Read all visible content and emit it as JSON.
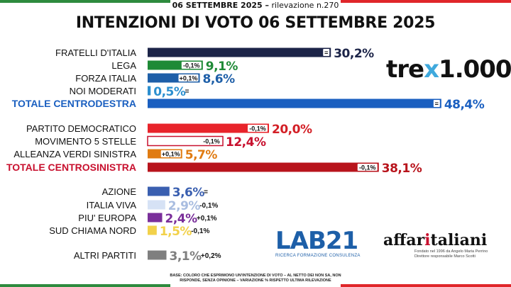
{
  "header": {
    "date_line_bold": "06 SETTEMBRE 2025 –",
    "date_line_rest": " rilevazione n.270",
    "title": "INTENZIONI DI VOTO 06 SETTEMBRE 2025"
  },
  "colors": {
    "flag_green": "#2e8b3e",
    "flag_white": "#ffffff",
    "flag_red": "#e0262a"
  },
  "chart_data": {
    "type": "bar",
    "orientation": "horizontal",
    "title": "INTENZIONI DI VOTO 06 SETTEMBRE 2025",
    "unit": "%",
    "rows": [
      {
        "party": "FRATELLI D'ITALIA",
        "value": 30.2,
        "label": "30,2%",
        "change": "=",
        "color": "#1c2448",
        "change_pos": "inside",
        "label_color": "#1c2448",
        "party_color": "#111111",
        "bold": false
      },
      {
        "party": "LEGA",
        "value": 9.1,
        "label": "9,1%",
        "change": "-0,1%",
        "color": "#1e8a36",
        "change_pos": "inside",
        "label_color": "#1e8a36",
        "party_color": "#111111",
        "bold": false
      },
      {
        "party": "FORZA ITALIA",
        "value": 8.6,
        "label": "8,6%",
        "change": "+0,1%",
        "color": "#1e5fa8",
        "change_pos": "inside",
        "label_color": "#1e5fa8",
        "party_color": "#111111",
        "bold": false
      },
      {
        "party": "NOI MODERATI",
        "value": 0.5,
        "label": "0,5%",
        "change": "=",
        "color": "#2c8fcf",
        "change_pos": "after",
        "label_color": "#2c8fcf",
        "party_color": "#111111",
        "bold": false
      },
      {
        "party": "TOTALE CENTRODESTRA",
        "value": 48.4,
        "label": "48,4%",
        "change": "=",
        "color": "#1a5fc0",
        "change_pos": "inside",
        "label_color": "#1a5fc0",
        "party_color": "#1a5fc0",
        "bold": true
      },
      {
        "party": "PARTITO DEMOCRATICO",
        "value": 20.0,
        "label": "20,0%",
        "change": "-0,1%",
        "color": "#e8242b",
        "change_pos": "inside",
        "label_color": "#d31f26",
        "party_color": "#111111",
        "bold": false
      },
      {
        "party": "MOVIMENTO 5 STELLE",
        "value": 12.4,
        "label": "12,4%",
        "change": "-0,1%",
        "color": "#ffffff",
        "stroke": "#c8102e",
        "change_pos": "inside",
        "label_color": "#c8102e",
        "party_color": "#111111",
        "bold": false
      },
      {
        "party": "ALLEANZA VERDI SINISTRA",
        "value": 5.7,
        "label": "5,7%",
        "change": "+0,1%",
        "color": "#e07b12",
        "change_pos": "inside",
        "label_color": "#e07b12",
        "party_color": "#111111",
        "bold": false
      },
      {
        "party": "TOTALE CENTROSINISTRA",
        "value": 38.1,
        "label": "38,1%",
        "change": "-0,1%",
        "color": "#b8141c",
        "change_pos": "inside",
        "label_color": "#b8141c",
        "party_color": "#c8102e",
        "bold": true
      },
      {
        "party": "AZIONE",
        "value": 3.6,
        "label": "3,6%",
        "change": "=",
        "color": "#3a5fb0",
        "change_pos": "after",
        "label_color": "#3a5fb0",
        "party_color": "#111111",
        "bold": false
      },
      {
        "party": "ITALIA VIVA",
        "value": 2.9,
        "label": "2,9%",
        "change": "-0,1%",
        "color": "#d6e2f5",
        "change_pos": "after",
        "label_color": "#a9bde0",
        "party_color": "#111111",
        "bold": false
      },
      {
        "party": "PIU' EUROPA",
        "value": 2.4,
        "label": "2,4%",
        "change": "+0,1%",
        "color": "#7a2f9a",
        "change_pos": "after",
        "label_color": "#7a2f9a",
        "party_color": "#111111",
        "bold": false
      },
      {
        "party": "SUD CHIAMA NORD",
        "value": 1.5,
        "label": "1,5%",
        "change": "-0,1%",
        "color": "#f2d14a",
        "change_pos": "after",
        "label_color": "#f2d14a",
        "party_color": "#111111",
        "bold": false
      },
      {
        "party": "ALTRI PARTITI",
        "value": 3.1,
        "label": "3,1%",
        "change": "+0,2%",
        "color": "#7f7f7f",
        "change_pos": "after",
        "label_color": "#7f7f7f",
        "party_color": "#111111",
        "bold": false
      }
    ]
  },
  "logos": {
    "tre_pre": "tre",
    "tre_x": "x",
    "tre_post": "1.000",
    "lab_name": "LAB21",
    "lab_tagline": "RICERCA FORMAZIONE CONSULENZA",
    "affari_pre": "affar",
    "affari_one": "i",
    "affari_post": "taliani",
    "affari_sub1": "Fondato nel 1996 da Angelo Maria Perrino",
    "affari_sub2": "Direttore responsabile Marco Scotti"
  },
  "footer": {
    "base_note": "BASE: COLORO CHE ESPRIMONO UN'INTENZIONE DI VOTO – AL NETTO DEI NON SA, NON RISPONDE, SENZA OPINIONE – VARIAZIONE % RISPETTO ULTIMA RILEVAZIONE"
  }
}
